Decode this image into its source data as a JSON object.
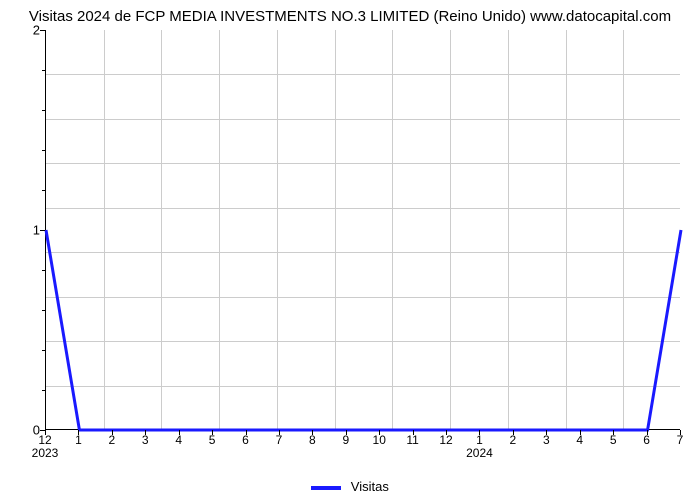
{
  "title": "Visitas 2024 de FCP MEDIA INVESTMENTS NO.3 LIMITED (Reino Unido) www.datocapital.com",
  "chart": {
    "type": "line",
    "n_points": 20,
    "values": [
      1,
      0,
      0,
      0,
      0,
      0,
      0,
      0,
      0,
      0,
      0,
      0,
      0,
      0,
      0,
      0,
      0,
      0,
      0,
      1
    ],
    "line_color": "#1a1aff",
    "line_width": 3,
    "x_axis": {
      "month_labels": [
        "12",
        "1",
        "2",
        "3",
        "4",
        "5",
        "6",
        "7",
        "8",
        "9",
        "10",
        "11",
        "12",
        "1",
        "2",
        "3",
        "4",
        "5",
        "6",
        "7"
      ],
      "year_labels": {
        "0": "2023",
        "13": "2024"
      }
    },
    "y_axis": {
      "ylim": [
        0,
        2
      ],
      "ticks": [
        0,
        1,
        2
      ],
      "minor_ticks_per_major": 5
    },
    "grid": {
      "v_count": 10,
      "h_count": 8,
      "color": "#cccccc"
    },
    "background_color": "#ffffff"
  },
  "legend": {
    "label": "Visitas",
    "swatch_color": "#1a1aff"
  }
}
